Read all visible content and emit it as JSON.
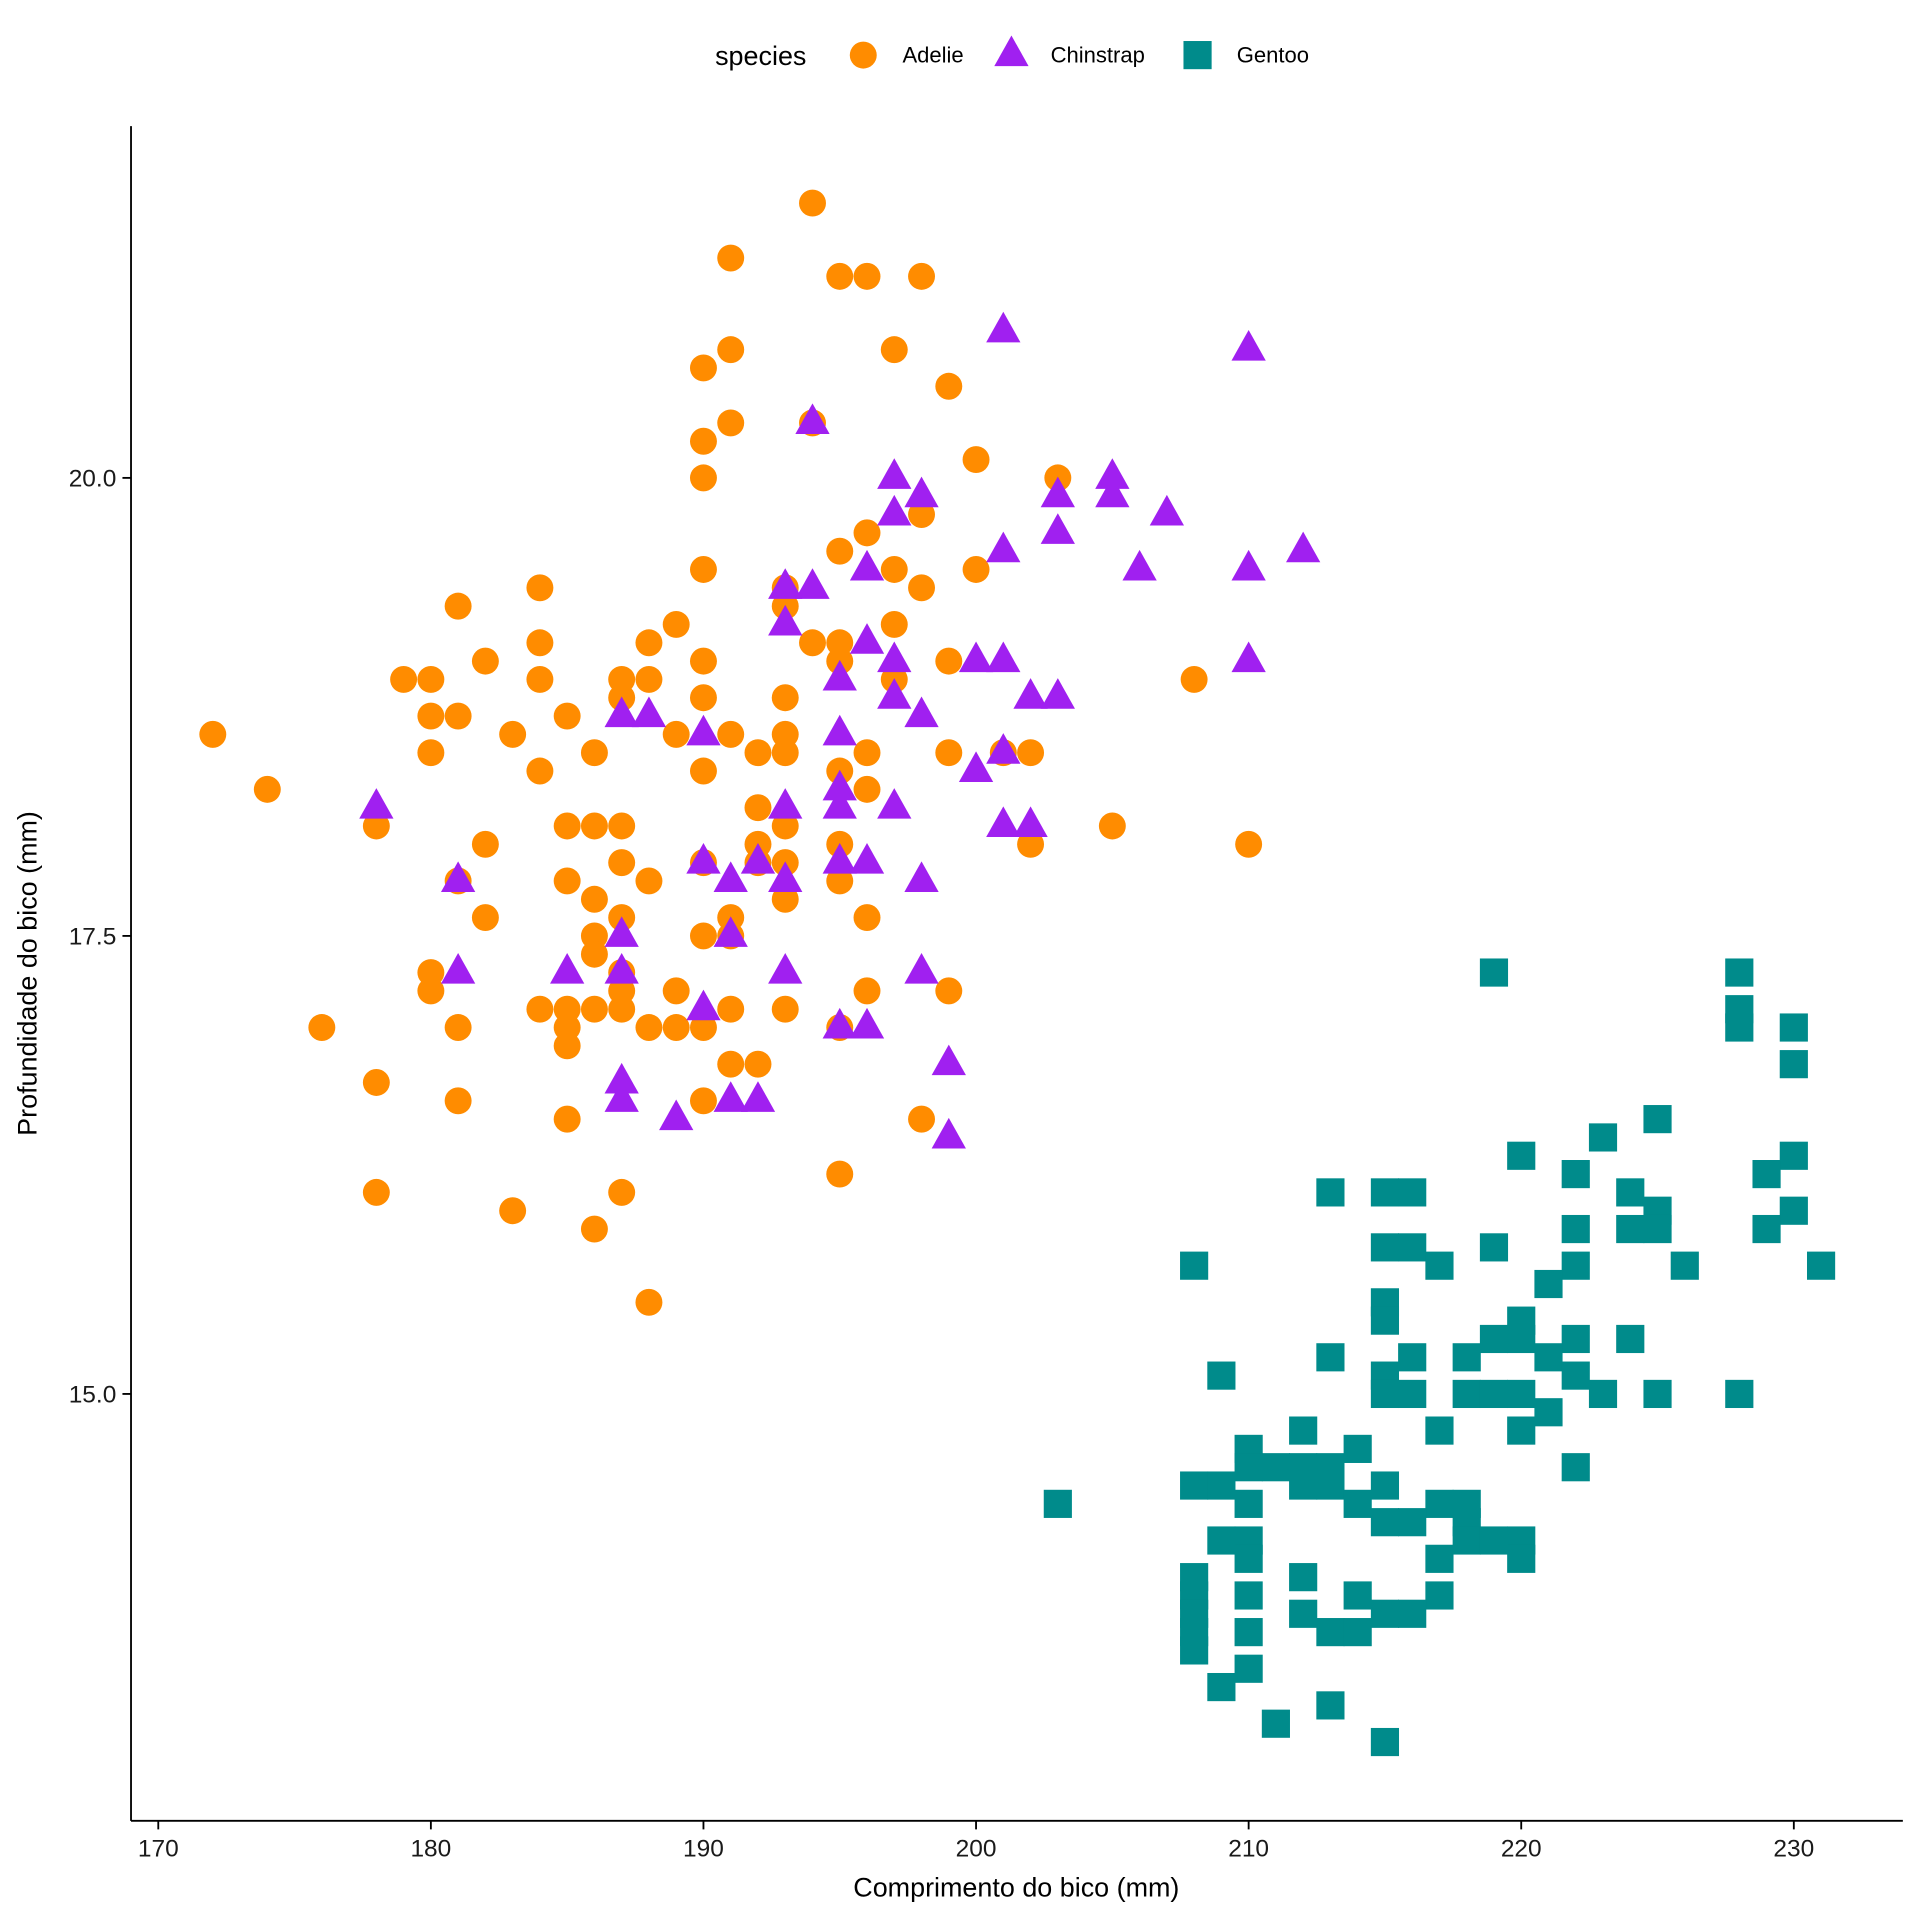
{
  "chart_data": {
    "type": "scatter",
    "title": "",
    "xlabel": "Comprimento do bico (mm)",
    "ylabel": "Profundidade do bico (mm)",
    "xlim": [
      169.0,
      234.0
    ],
    "ylim": [
      12.67,
      21.92
    ],
    "xticks": [
      170,
      180,
      190,
      200,
      210,
      220,
      230
    ],
    "xtick_labels": [
      "170",
      "180",
      "190",
      "200",
      "210",
      "220",
      "230"
    ],
    "yticks": [
      15.0,
      17.5,
      20.0
    ],
    "ytick_labels": [
      "15.0",
      "17.5",
      "20.0"
    ],
    "grid": false,
    "legend": {
      "title": "species",
      "position": "top"
    },
    "series": [
      {
        "name": "Adelie",
        "shape": "circle",
        "color": "#FF8C00",
        "points": [
          [
            194,
            21.5
          ],
          [
            191,
            21.2
          ],
          [
            195,
            21.1
          ],
          [
            196,
            21.1
          ],
          [
            198,
            21.1
          ],
          [
            191,
            20.7
          ],
          [
            197,
            20.7
          ],
          [
            190,
            20.6
          ],
          [
            199,
            20.5
          ],
          [
            191,
            20.3
          ],
          [
            194,
            20.3
          ],
          [
            190,
            20.2
          ],
          [
            200,
            20.1
          ],
          [
            190,
            20.0
          ],
          [
            203,
            20.0
          ],
          [
            198,
            19.8
          ],
          [
            196,
            19.7
          ],
          [
            195,
            19.6
          ],
          [
            190,
            19.5
          ],
          [
            197,
            19.5
          ],
          [
            200,
            19.5
          ],
          [
            184,
            19.4
          ],
          [
            193,
            19.4
          ],
          [
            198,
            19.4
          ],
          [
            181,
            19.3
          ],
          [
            193,
            19.3
          ],
          [
            189,
            19.2
          ],
          [
            197,
            19.2
          ],
          [
            184,
            19.1
          ],
          [
            188,
            19.1
          ],
          [
            194,
            19.1
          ],
          [
            195,
            19.1
          ],
          [
            182,
            19.0
          ],
          [
            190,
            19.0
          ],
          [
            195,
            19.0
          ],
          [
            199,
            19.0
          ],
          [
            179,
            18.9
          ],
          [
            180,
            18.9
          ],
          [
            184,
            18.9
          ],
          [
            187,
            18.9
          ],
          [
            188,
            18.9
          ],
          [
            197,
            18.9
          ],
          [
            208,
            18.9
          ],
          [
            187,
            18.8
          ],
          [
            190,
            18.8
          ],
          [
            193,
            18.8
          ],
          [
            180,
            18.7
          ],
          [
            181,
            18.7
          ],
          [
            185,
            18.7
          ],
          [
            172,
            18.6
          ],
          [
            183,
            18.6
          ],
          [
            189,
            18.6
          ],
          [
            191,
            18.6
          ],
          [
            193,
            18.6
          ],
          [
            180,
            18.5
          ],
          [
            186,
            18.5
          ],
          [
            192,
            18.5
          ],
          [
            193,
            18.5
          ],
          [
            196,
            18.5
          ],
          [
            199,
            18.5
          ],
          [
            201,
            18.5
          ],
          [
            202,
            18.5
          ],
          [
            184,
            18.4
          ],
          [
            190,
            18.4
          ],
          [
            195,
            18.4
          ],
          [
            174,
            18.3
          ],
          [
            196,
            18.3
          ],
          [
            192,
            18.2
          ],
          [
            178,
            18.1
          ],
          [
            185,
            18.1
          ],
          [
            186,
            18.1
          ],
          [
            187,
            18.1
          ],
          [
            193,
            18.1
          ],
          [
            205,
            18.1
          ],
          [
            182,
            18.0
          ],
          [
            192,
            18.0
          ],
          [
            195,
            18.0
          ],
          [
            202,
            18.0
          ],
          [
            210,
            18.0
          ],
          [
            187,
            17.9
          ],
          [
            190,
            17.9
          ],
          [
            192,
            17.9
          ],
          [
            193,
            17.9
          ],
          [
            181,
            17.8
          ],
          [
            185,
            17.8
          ],
          [
            188,
            17.8
          ],
          [
            195,
            17.8
          ],
          [
            186,
            17.7
          ],
          [
            193,
            17.7
          ],
          [
            182,
            17.6
          ],
          [
            187,
            17.6
          ],
          [
            191,
            17.6
          ],
          [
            196,
            17.6
          ],
          [
            186,
            17.5
          ],
          [
            190,
            17.5
          ],
          [
            191,
            17.5
          ],
          [
            186,
            17.4
          ],
          [
            180,
            17.3
          ],
          [
            187,
            17.3
          ],
          [
            180,
            17.2
          ],
          [
            187,
            17.2
          ],
          [
            189,
            17.2
          ],
          [
            196,
            17.2
          ],
          [
            199,
            17.2
          ],
          [
            184,
            17.1
          ],
          [
            185,
            17.1
          ],
          [
            186,
            17.1
          ],
          [
            187,
            17.1
          ],
          [
            191,
            17.1
          ],
          [
            193,
            17.1
          ],
          [
            176,
            17.0
          ],
          [
            181,
            17.0
          ],
          [
            185,
            17.0
          ],
          [
            188,
            17.0
          ],
          [
            189,
            17.0
          ],
          [
            190,
            17.0
          ],
          [
            195,
            17.0
          ],
          [
            185,
            16.9
          ],
          [
            191,
            16.8
          ],
          [
            192,
            16.8
          ],
          [
            178,
            16.7
          ],
          [
            181,
            16.6
          ],
          [
            190,
            16.6
          ],
          [
            185,
            16.5
          ],
          [
            198,
            16.5
          ],
          [
            195,
            16.2
          ],
          [
            178,
            16.1
          ],
          [
            187,
            16.1
          ],
          [
            183,
            16.0
          ],
          [
            186,
            15.9
          ],
          [
            188,
            15.5
          ]
        ]
      },
      {
        "name": "Chinstrap",
        "shape": "triangle",
        "color": "#A020F0",
        "points": [
          [
            201,
            20.8
          ],
          [
            210,
            20.7
          ],
          [
            194,
            20.3
          ],
          [
            197,
            20.0
          ],
          [
            205,
            20.0
          ],
          [
            198,
            19.9
          ],
          [
            203,
            19.9
          ],
          [
            205,
            19.9
          ],
          [
            197,
            19.8
          ],
          [
            207,
            19.8
          ],
          [
            203,
            19.7
          ],
          [
            201,
            19.6
          ],
          [
            212,
            19.6
          ],
          [
            196,
            19.5
          ],
          [
            206,
            19.5
          ],
          [
            210,
            19.5
          ],
          [
            193,
            19.4
          ],
          [
            194,
            19.4
          ],
          [
            193,
            19.2
          ],
          [
            196,
            19.1
          ],
          [
            197,
            19.0
          ],
          [
            200,
            19.0
          ],
          [
            201,
            19.0
          ],
          [
            210,
            19.0
          ],
          [
            195,
            18.9
          ],
          [
            197,
            18.8
          ],
          [
            202,
            18.8
          ],
          [
            203,
            18.8
          ],
          [
            187,
            18.7
          ],
          [
            188,
            18.7
          ],
          [
            198,
            18.7
          ],
          [
            190,
            18.6
          ],
          [
            195,
            18.6
          ],
          [
            201,
            18.5
          ],
          [
            200,
            18.4
          ],
          [
            195,
            18.3
          ],
          [
            178,
            18.2
          ],
          [
            193,
            18.2
          ],
          [
            195,
            18.2
          ],
          [
            197,
            18.2
          ],
          [
            201,
            18.1
          ],
          [
            202,
            18.1
          ],
          [
            190,
            17.9
          ],
          [
            192,
            17.9
          ],
          [
            195,
            17.9
          ],
          [
            196,
            17.9
          ],
          [
            181,
            17.8
          ],
          [
            191,
            17.8
          ],
          [
            193,
            17.8
          ],
          [
            198,
            17.8
          ],
          [
            187,
            17.5
          ],
          [
            191,
            17.5
          ],
          [
            181,
            17.3
          ],
          [
            185,
            17.3
          ],
          [
            187,
            17.3
          ],
          [
            193,
            17.3
          ],
          [
            198,
            17.3
          ],
          [
            190,
            17.1
          ],
          [
            195,
            17.0
          ],
          [
            196,
            17.0
          ],
          [
            199,
            16.8
          ],
          [
            187,
            16.7
          ],
          [
            187,
            16.6
          ],
          [
            191,
            16.6
          ],
          [
            192,
            16.6
          ],
          [
            189,
            16.5
          ],
          [
            199,
            16.4
          ]
        ]
      },
      {
        "name": "Gentoo",
        "shape": "square",
        "color": "#008B8B",
        "points": [
          [
            219,
            17.3
          ],
          [
            228,
            17.3
          ],
          [
            228,
            17.1
          ],
          [
            228,
            17.0
          ],
          [
            230,
            17.0
          ],
          [
            230,
            16.8
          ],
          [
            225,
            16.5
          ],
          [
            223,
            16.4
          ],
          [
            220,
            16.3
          ],
          [
            230,
            16.3
          ],
          [
            222,
            16.2
          ],
          [
            229,
            16.2
          ],
          [
            213,
            16.1
          ],
          [
            215,
            16.1
          ],
          [
            216,
            16.1
          ],
          [
            224,
            16.1
          ],
          [
            225,
            16.0
          ],
          [
            230,
            16.0
          ],
          [
            222,
            15.9
          ],
          [
            224,
            15.9
          ],
          [
            225,
            15.9
          ],
          [
            229,
            15.9
          ],
          [
            215,
            15.8
          ],
          [
            216,
            15.8
          ],
          [
            219,
            15.8
          ],
          [
            208,
            15.7
          ],
          [
            217,
            15.7
          ],
          [
            222,
            15.7
          ],
          [
            226,
            15.7
          ],
          [
            231,
            15.7
          ],
          [
            221,
            15.6
          ],
          [
            215,
            15.5
          ],
          [
            215,
            15.4
          ],
          [
            220,
            15.4
          ],
          [
            219,
            15.3
          ],
          [
            220,
            15.3
          ],
          [
            222,
            15.3
          ],
          [
            224,
            15.3
          ],
          [
            213,
            15.2
          ],
          [
            216,
            15.2
          ],
          [
            218,
            15.2
          ],
          [
            221,
            15.2
          ],
          [
            209,
            15.1
          ],
          [
            215,
            15.1
          ],
          [
            222,
            15.1
          ],
          [
            215,
            15.0
          ],
          [
            216,
            15.0
          ],
          [
            218,
            15.0
          ],
          [
            219,
            15.0
          ],
          [
            220,
            15.0
          ],
          [
            223,
            15.0
          ],
          [
            225,
            15.0
          ],
          [
            228,
            15.0
          ],
          [
            221,
            14.9
          ],
          [
            212,
            14.8
          ],
          [
            217,
            14.8
          ],
          [
            220,
            14.8
          ],
          [
            210,
            14.7
          ],
          [
            214,
            14.7
          ],
          [
            210,
            14.6
          ],
          [
            211,
            14.6
          ],
          [
            212,
            14.6
          ],
          [
            213,
            14.6
          ],
          [
            222,
            14.6
          ],
          [
            208,
            14.5
          ],
          [
            209,
            14.5
          ],
          [
            212,
            14.5
          ],
          [
            213,
            14.5
          ],
          [
            215,
            14.5
          ],
          [
            203,
            14.4
          ],
          [
            210,
            14.4
          ],
          [
            214,
            14.4
          ],
          [
            217,
            14.4
          ],
          [
            218,
            14.4
          ],
          [
            215,
            14.3
          ],
          [
            216,
            14.3
          ],
          [
            218,
            14.3
          ],
          [
            209,
            14.2
          ],
          [
            210,
            14.2
          ],
          [
            218,
            14.2
          ],
          [
            219,
            14.2
          ],
          [
            220,
            14.2
          ],
          [
            210,
            14.1
          ],
          [
            217,
            14.1
          ],
          [
            220,
            14.1
          ],
          [
            208,
            14.0
          ],
          [
            212,
            14.0
          ],
          [
            208,
            13.9
          ],
          [
            210,
            13.9
          ],
          [
            214,
            13.9
          ],
          [
            217,
            13.9
          ],
          [
            208,
            13.8
          ],
          [
            212,
            13.8
          ],
          [
            215,
            13.8
          ],
          [
            216,
            13.8
          ],
          [
            208,
            13.7
          ],
          [
            210,
            13.7
          ],
          [
            213,
            13.7
          ],
          [
            214,
            13.7
          ],
          [
            208,
            13.6
          ],
          [
            210,
            13.5
          ],
          [
            209,
            13.4
          ],
          [
            213,
            13.3
          ],
          [
            211,
            13.2
          ],
          [
            215,
            13.1
          ]
        ]
      }
    ]
  }
}
